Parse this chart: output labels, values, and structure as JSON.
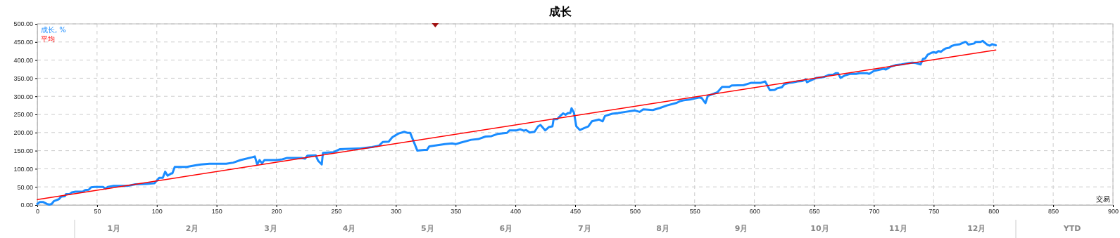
{
  "chart_data": {
    "type": "line",
    "title": "成长",
    "xlabel": "交易",
    "xlim": [
      0,
      900
    ],
    "xticks": [
      0,
      50,
      100,
      150,
      200,
      250,
      300,
      350,
      400,
      450,
      500,
      550,
      600,
      650,
      700,
      750,
      800,
      850,
      900
    ],
    "ylim": [
      0,
      500
    ],
    "yticks": [
      {
        "value": 0,
        "label": "0.00"
      },
      {
        "value": 50,
        "label": "50.00"
      },
      {
        "value": 100,
        "label": "100.00"
      },
      {
        "value": 150,
        "label": "150.00"
      },
      {
        "value": 200,
        "label": "200.00"
      },
      {
        "value": 250,
        "label": "250.00"
      },
      {
        "value": 300,
        "label": "300.00"
      },
      {
        "value": 350,
        "label": "350.00"
      },
      {
        "value": 400,
        "label": "400.00"
      },
      {
        "value": 450,
        "label": "450.00"
      },
      {
        "value": 500,
        "label": "500.00"
      }
    ],
    "grid": true,
    "legend": "top left",
    "marker": "none",
    "line_style": "solid",
    "annotations": [
      "1月",
      "2月",
      "3月",
      "4月",
      "5月",
      "6月",
      "7月",
      "8月",
      "9月",
      "10月",
      "11月",
      "12月",
      "YTD"
    ],
    "series": [
      {
        "name": "成长, %",
        "color": "#1a8cff",
        "x": [
          0,
          2,
          5,
          8,
          10,
          12,
          14,
          18,
          20,
          23,
          24,
          27,
          29,
          32,
          38,
          40,
          43,
          45,
          48,
          55,
          57,
          59,
          64,
          70,
          76,
          82,
          91,
          98,
          102,
          105,
          107,
          109,
          112,
          113,
          115,
          125,
          133,
          137,
          144,
          158,
          164,
          170,
          180,
          182,
          184,
          186,
          188,
          190,
          200,
          205,
          209,
          221,
          224,
          226,
          233,
          235,
          238,
          239,
          248,
          253,
          260,
          270,
          280,
          286,
          289,
          294,
          297,
          302,
          307,
          310,
          312,
          318,
          324,
          326,
          328,
          335,
          341,
          347,
          350,
          354,
          363,
          369,
          375,
          380,
          385,
          393,
          395,
          401,
          404,
          407,
          409,
          412,
          416,
          419,
          421,
          425,
          428,
          431,
          432,
          435,
          437,
          440,
          442,
          444,
          446,
          447,
          449,
          451,
          454,
          458,
          461,
          464,
          470,
          473,
          475,
          481,
          486,
          492,
          500,
          504,
          507,
          515,
          521,
          527,
          535,
          538,
          541,
          546,
          554,
          556,
          559,
          561,
          569,
          573,
          579,
          581,
          591,
          597,
          605,
          609,
          613,
          617,
          619,
          623,
          625,
          629,
          632,
          636,
          640,
          643,
          644,
          648,
          652,
          658,
          662,
          666,
          668,
          670,
          672,
          676,
          680,
          685,
          688,
          694,
          696,
          700,
          704,
          708,
          710,
          714,
          718,
          723,
          728,
          732,
          735,
          739,
          741,
          743,
          745,
          748,
          750,
          752,
          754,
          756,
          758,
          760,
          763,
          765,
          768,
          772,
          776,
          777,
          779,
          784,
          785,
          789,
          791,
          795,
          797,
          799,
          802
        ],
        "values": [
          3,
          8,
          8,
          3,
          1,
          3,
          11,
          16,
          23,
          24,
          30,
          30,
          35,
          37,
          37,
          41,
          42,
          49,
          50,
          50,
          45,
          50,
          53,
          53,
          53,
          57,
          58,
          60,
          75,
          75,
          92,
          81,
          87,
          87,
          105,
          105,
          110,
          112,
          114,
          114,
          117,
          124,
          132,
          134,
          112,
          124,
          115,
          124,
          124,
          126,
          130,
          130,
          128,
          136,
          137,
          122,
          112,
          144,
          146,
          154,
          155,
          156,
          160,
          164,
          174,
          175,
          187,
          197,
          202,
          199,
          199,
          150,
          152,
          152,
          162,
          165,
          168,
          170,
          168,
          172,
          180,
          182,
          189,
          190,
          196,
          199,
          206,
          206,
          209,
          205,
          207,
          200,
          202,
          217,
          221,
          206,
          215,
          217,
          237,
          237,
          244,
          253,
          249,
          254,
          254,
          267,
          255,
          217,
          207,
          213,
          217,
          231,
          236,
          231,
          246,
          252,
          254,
          257,
          261,
          257,
          264,
          262,
          268,
          275,
          282,
          287,
          289,
          291,
          297,
          295,
          281,
          301,
          311,
          326,
          326,
          330,
          331,
          337,
          337,
          341,
          317,
          318,
          322,
          325,
          333,
          337,
          338,
          341,
          342,
          347,
          339,
          345,
          351,
          353,
          359,
          360,
          364,
          364,
          351,
          358,
          362,
          362,
          364,
          364,
          362,
          370,
          373,
          376,
          374,
          382,
          386,
          388,
          391,
          393,
          392,
          388,
          403,
          405,
          415,
          420,
          422,
          420,
          425,
          423,
          428,
          432,
          434,
          439,
          442,
          444,
          450,
          450,
          443,
          446,
          450,
          450,
          453,
          442,
          440,
          444,
          441
        ]
      },
      {
        "name": "平均",
        "color": "#ff0000",
        "x": [
          0,
          802
        ],
        "values": [
          15,
          428
        ]
      }
    ]
  }
}
